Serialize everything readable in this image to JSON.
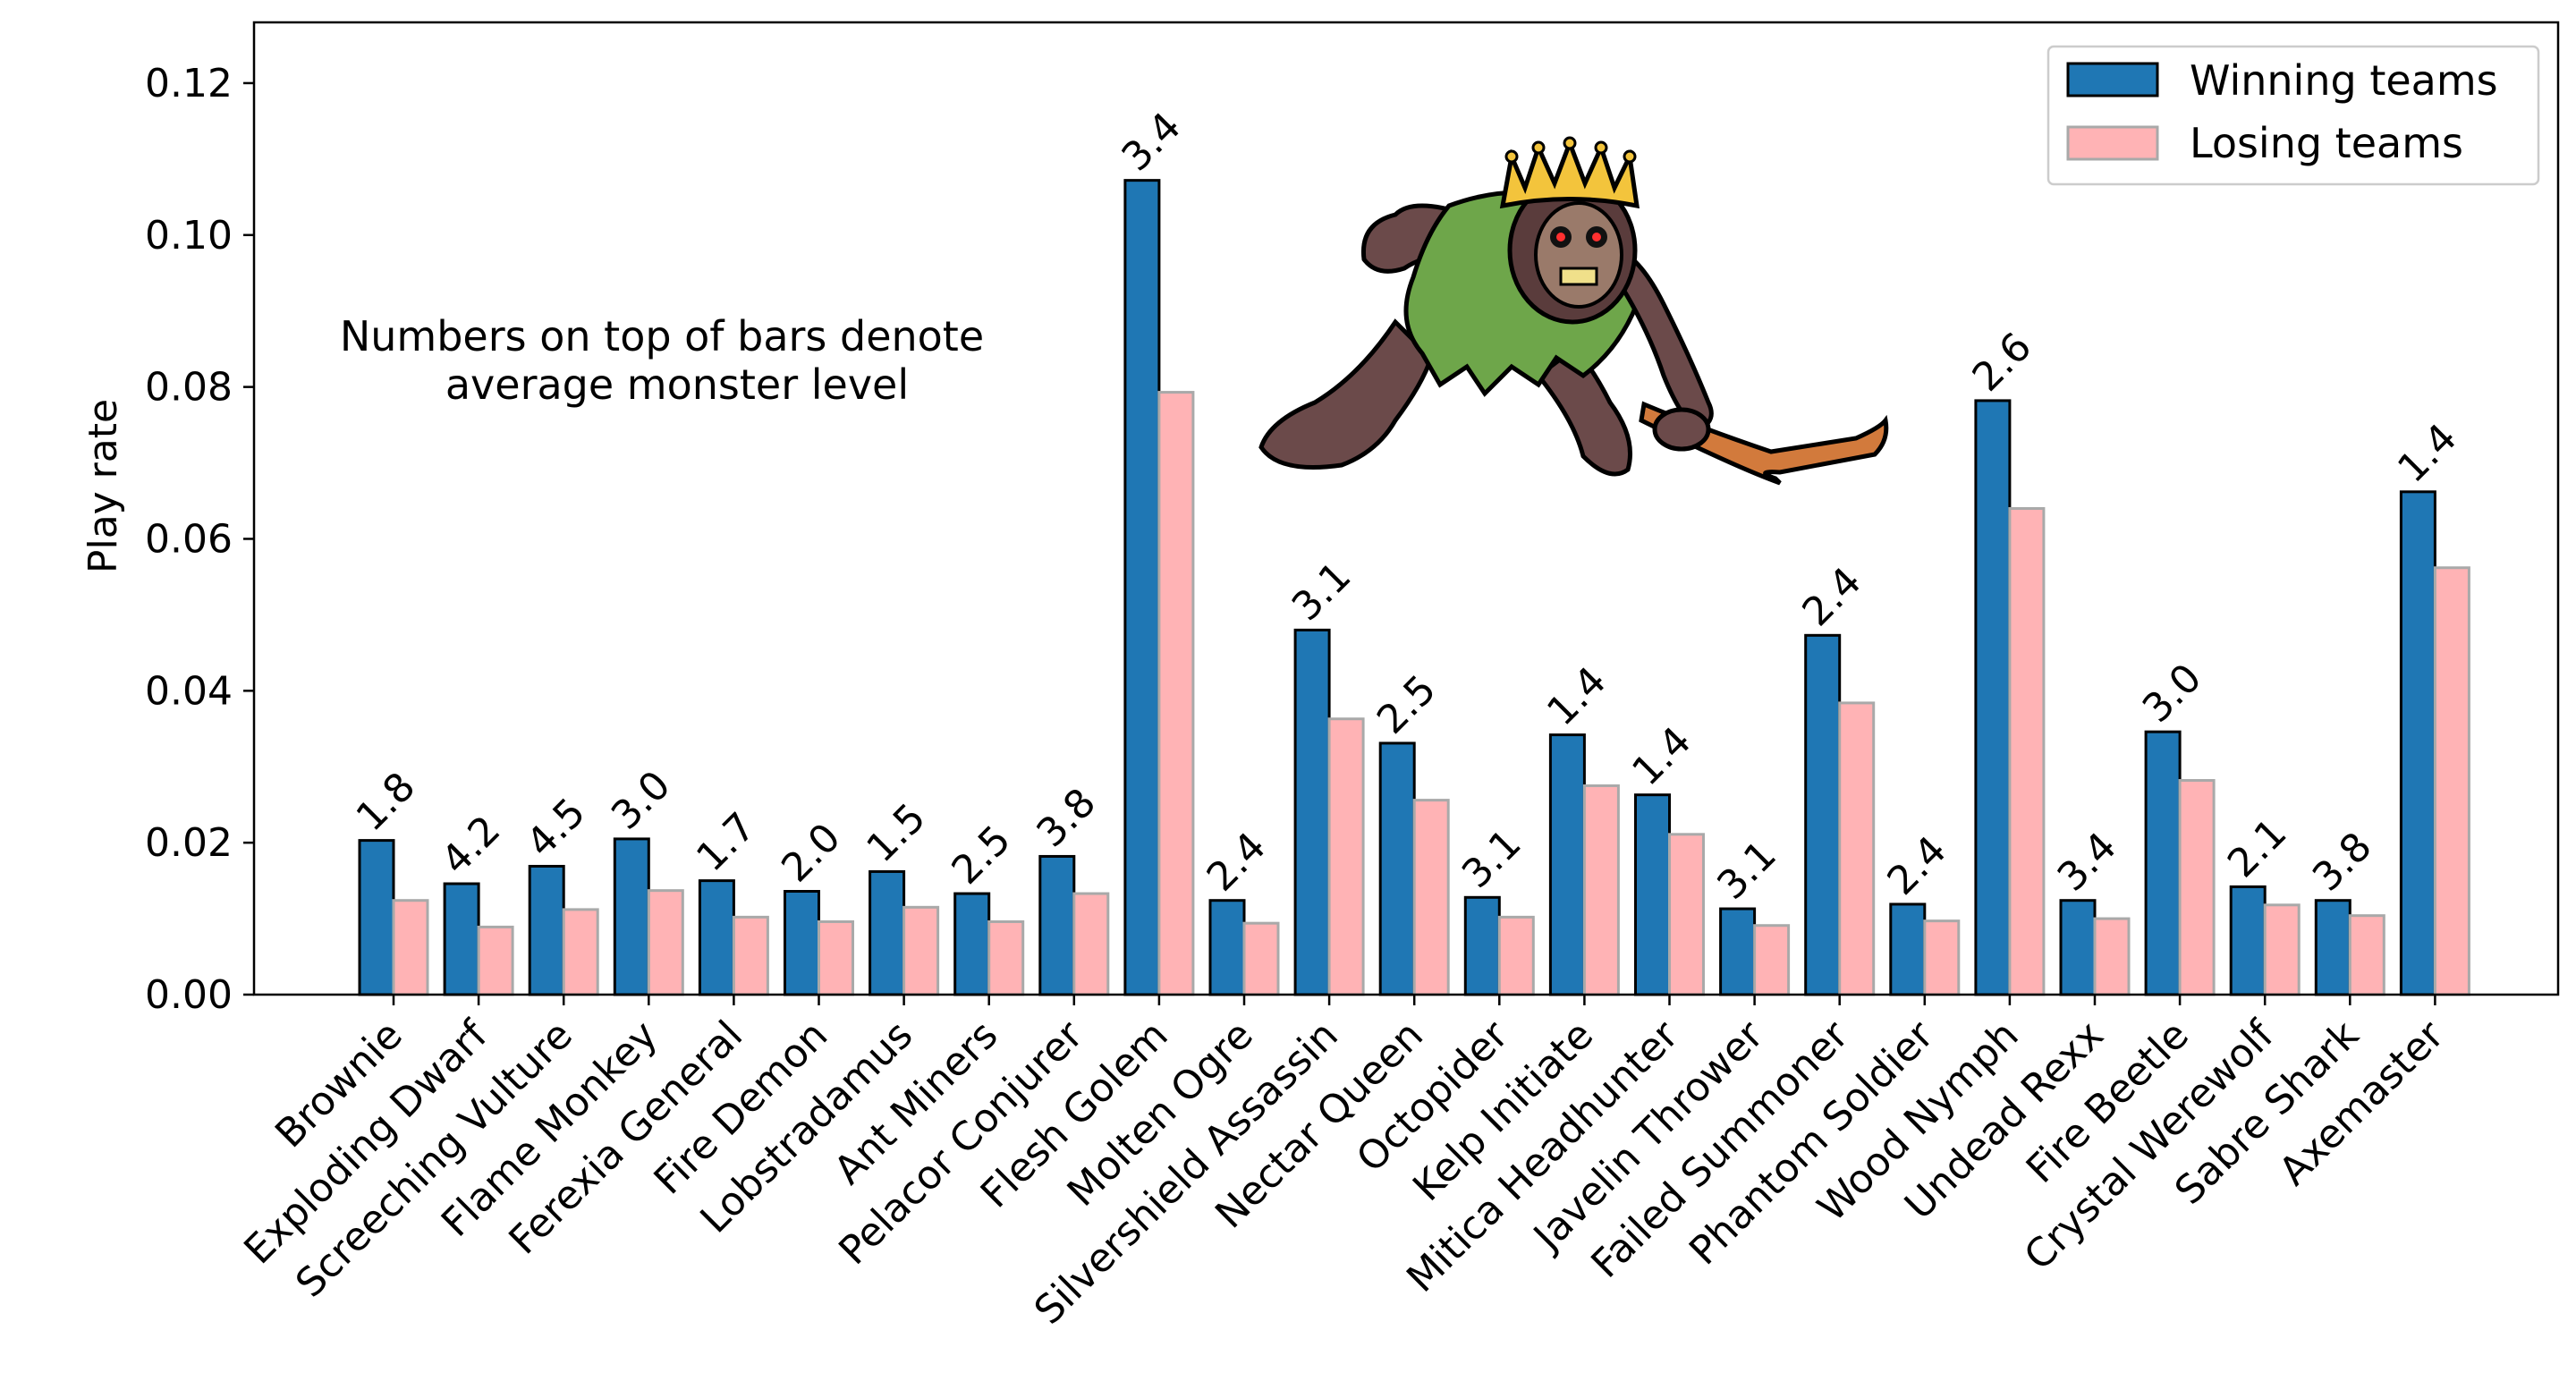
{
  "chart_data": {
    "type": "bar",
    "ylabel": "Play rate",
    "xlabel": "",
    "ylim": [
      0,
      0.128
    ],
    "yticks": [
      "0.00",
      "0.02",
      "0.04",
      "0.06",
      "0.08",
      "0.10",
      "0.12"
    ],
    "legend_position": "top-right",
    "annotation": [
      "Numbers on top of bars denote",
      "average monster level"
    ],
    "categories": [
      "Brownie",
      "Exploding Dwarf",
      "Screeching Vulture",
      "Flame Monkey",
      "Ferexia General",
      "Fire Demon",
      "Lobstradamus",
      "Ant Miners",
      "Pelacor Conjurer",
      "Flesh Golem",
      "Molten Ogre",
      "Silvershield Assassin",
      "Nectar Queen",
      "Octopider",
      "Kelp Initiate",
      "Mitica Headhunter",
      "Javelin Thrower",
      "Failed Summoner",
      "Phantom Soldier",
      "Wood Nymph",
      "Undead Rexx",
      "Fire Beetle",
      "Crystal Werewolf",
      "Sabre Shark",
      "Axemaster"
    ],
    "bar_labels": [
      "1.8",
      "4.2",
      "4.5",
      "3.0",
      "1.7",
      "2.0",
      "1.5",
      "2.5",
      "3.8",
      "3.4",
      "2.4",
      "3.1",
      "2.5",
      "3.1",
      "1.4",
      "1.4",
      "3.1",
      "2.4",
      "2.4",
      "2.6",
      "3.4",
      "3.0",
      "2.1",
      "3.8",
      "1.4"
    ],
    "series": [
      {
        "name": "Winning teams",
        "color": "#1f77b4",
        "values": [
          0.0203,
          0.0146,
          0.0169,
          0.0205,
          0.015,
          0.0136,
          0.0162,
          0.0133,
          0.0182,
          0.1072,
          0.0124,
          0.048,
          0.0331,
          0.0128,
          0.0342,
          0.0263,
          0.0113,
          0.0473,
          0.0119,
          0.0782,
          0.0124,
          0.0346,
          0.0142,
          0.0124,
          0.0662
        ]
      },
      {
        "name": "Losing teams",
        "color": "#ffb3b5",
        "values": [
          0.0124,
          0.0089,
          0.0112,
          0.0137,
          0.0102,
          0.0096,
          0.0115,
          0.0096,
          0.0133,
          0.0793,
          0.0094,
          0.0363,
          0.0256,
          0.0102,
          0.0275,
          0.0211,
          0.0091,
          0.0384,
          0.0097,
          0.064,
          0.01,
          0.0282,
          0.0118,
          0.0104,
          0.0562
        ]
      }
    ]
  },
  "image": {
    "icon": "crowned-monkey-monster-icon"
  }
}
